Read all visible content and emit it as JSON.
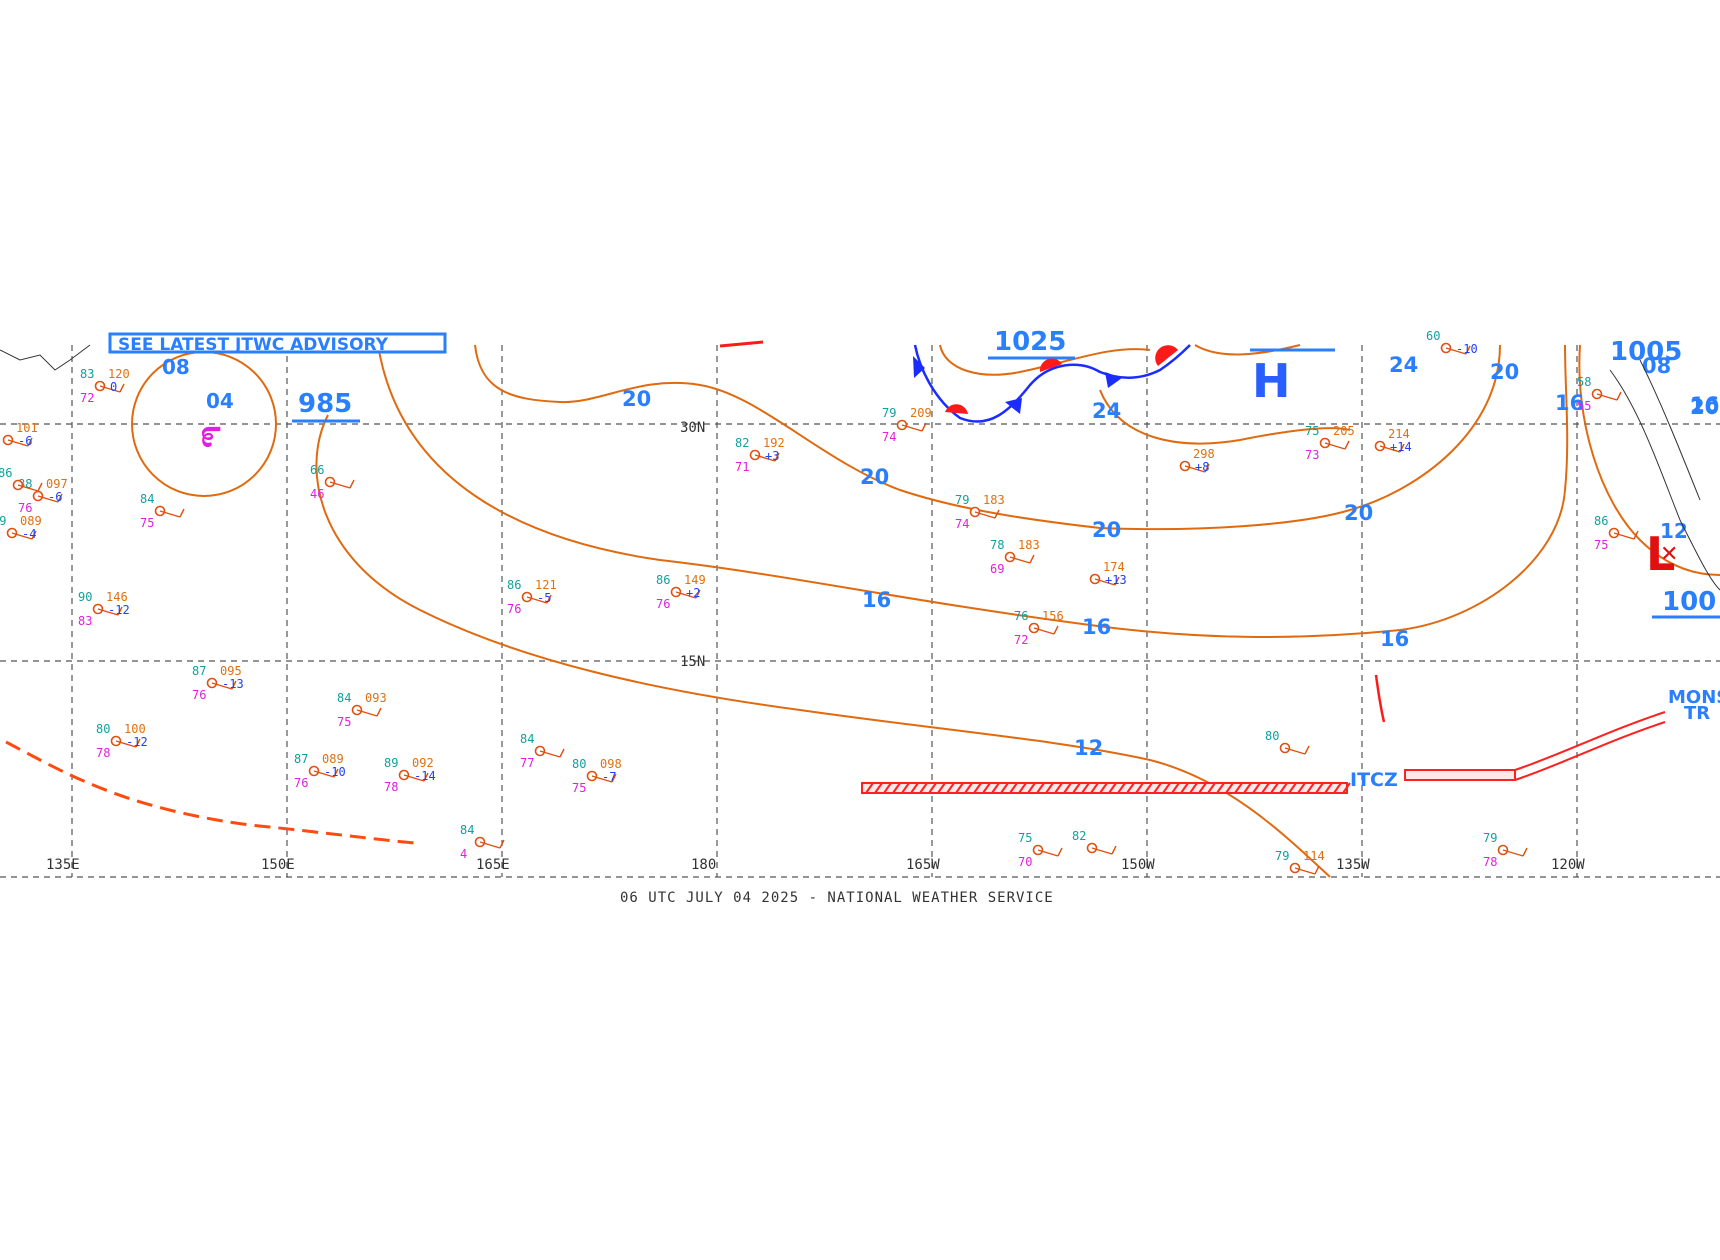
{
  "footer": "06 UTC JULY 04 2025 - NATIONAL WEATHER SERVICE",
  "top_banner": "SEE LATEST JTWC ADVISORY",
  "colors": {
    "isobar": "#e06a10",
    "label": "#2a7fff",
    "itcz": "#ff2020",
    "cold_front": "#1a2cff",
    "warm_front": "#ff1a1a",
    "grid": "#555555"
  },
  "grid": {
    "longitudes": [
      "135E",
      "150E",
      "165E",
      "180",
      "165W",
      "150W",
      "135W",
      "120W"
    ],
    "latitudes": [
      "30N",
      "15N"
    ]
  },
  "isobar_labels": [
    "20",
    "20",
    "20",
    "20",
    "20",
    "16",
    "16",
    "16",
    "12",
    "24",
    "24",
    "16",
    "20"
  ],
  "pressure_centers": [
    {
      "type": "H",
      "label": "1025"
    },
    {
      "type": "L",
      "label": "1005"
    },
    {
      "type": "L",
      "label": "985"
    },
    {
      "type": "L",
      "label": "100"
    }
  ],
  "features": {
    "itcz_label": "ITCZ",
    "monsoon_label_1": "MONS",
    "monsoon_label_2": "TR",
    "tropical_cyclone_label": "04",
    "tropical_cyclone_icon": "tropical-cyclone-icon",
    "label_08": "08",
    "label_08_east": "08",
    "low_east_value": "12",
    "label_16_east": "16"
  },
  "stations": [
    {
      "temp": "82",
      "pres": "192",
      "tend": "+3",
      "dew": "71"
    },
    {
      "temp": "79",
      "pres": "209",
      "tend": "",
      "dew": "74"
    },
    {
      "temp": "86",
      "pres": "121",
      "tend": "-5",
      "dew": "76"
    },
    {
      "temp": "86",
      "pres": "149",
      "tend": "+2",
      "dew": "76"
    },
    {
      "temp": "90",
      "pres": "146",
      "tend": "-12",
      "dew": "83"
    },
    {
      "temp": "87",
      "pres": "095",
      "tend": "-13",
      "dew": "76"
    },
    {
      "temp": "84",
      "pres": "093",
      "tend": "",
      "dew": "75"
    },
    {
      "temp": "80",
      "pres": "100",
      "tend": "-12",
      "dew": "78"
    },
    {
      "temp": "87",
      "pres": "089",
      "tend": "-10",
      "dew": "76"
    },
    {
      "temp": "89",
      "pres": "092",
      "tend": "-14",
      "dew": "78"
    },
    {
      "temp": "80",
      "pres": "098",
      "tend": "-7",
      "dew": "75"
    },
    {
      "temp": "84",
      "pres": "",
      "tend": "",
      "dew": "77"
    },
    {
      "temp": "75",
      "pres": "205",
      "tend": "",
      "dew": "73"
    },
    {
      "temp": "",
      "pres": "214",
      "tend": "+14",
      "dew": ""
    },
    {
      "temp": "",
      "pres": "298",
      "tend": "+8",
      "dew": ""
    },
    {
      "temp": "79",
      "pres": "183",
      "tend": "",
      "dew": "74"
    },
    {
      "temp": "76",
      "pres": "156",
      "tend": "",
      "dew": "72"
    },
    {
      "temp": "78",
      "pres": "183",
      "tend": "",
      "dew": "69"
    },
    {
      "temp": "",
      "pres": "174",
      "tend": "+13",
      "dew": ""
    },
    {
      "temp": "80",
      "pres": "",
      "tend": "",
      "dew": ""
    },
    {
      "temp": "75",
      "pres": "",
      "tend": "",
      "dew": "70"
    },
    {
      "temp": "82",
      "pres": "",
      "tend": "",
      "dew": ""
    },
    {
      "temp": "79",
      "pres": "114",
      "tend": "",
      "dew": ""
    },
    {
      "temp": "79",
      "pres": "",
      "tend": "",
      "dew": "78"
    },
    {
      "temp": "86",
      "pres": "",
      "tend": "",
      "dew": "75"
    },
    {
      "temp": "84",
      "pres": "",
      "tend": "",
      "dew": "75"
    },
    {
      "temp": "66",
      "pres": "",
      "tend": "",
      "dew": "46"
    },
    {
      "temp": "88",
      "pres": "097",
      "tend": "-6",
      "dew": "76"
    },
    {
      "temp": "89",
      "pres": "089",
      "tend": "-4",
      "dew": ""
    },
    {
      "temp": "83",
      "pres": "120",
      "tend": "0",
      "dew": "72"
    },
    {
      "temp": "",
      "pres": "101",
      "tend": "-6",
      "dew": ""
    },
    {
      "temp": "86",
      "pres": "",
      "tend": "",
      "dew": ""
    },
    {
      "temp": "84",
      "pres": "",
      "tend": "",
      "dew": "4"
    },
    {
      "temp": "60",
      "pres": "",
      "tend": "-10",
      "dew": ""
    },
    {
      "temp": "58",
      "pres": "",
      "tend": "",
      "dew": "55"
    }
  ]
}
